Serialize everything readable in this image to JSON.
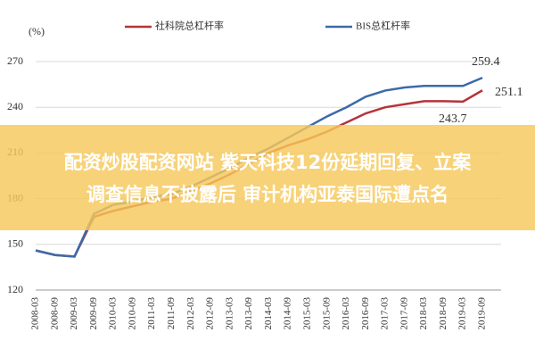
{
  "chart_data": {
    "type": "line",
    "y_unit_label": "(%)",
    "categories": [
      "2008-03",
      "2008-09",
      "2009-03",
      "2009-09",
      "2010-03",
      "2010-09",
      "2011-03",
      "2011-09",
      "2012-03",
      "2012-09",
      "2013-03",
      "2013-09",
      "2014-03",
      "2014-09",
      "2015-03",
      "2015-09",
      "2016-03",
      "2016-09",
      "2017-03",
      "2017-09",
      "2018-03",
      "2018-09",
      "2019-03",
      "2019-09"
    ],
    "series": [
      {
        "name": "社科院总杠杆率",
        "color": "#b5343a",
        "values": [
          146,
          143,
          142,
          168,
          172,
          175,
          178,
          180,
          185,
          190,
          196,
          203,
          210,
          215,
          219,
          224,
          230,
          236,
          240,
          242,
          244,
          244,
          243.7,
          251.1
        ]
      },
      {
        "name": "BIS总杠杆率",
        "color": "#3c6aa8",
        "values": [
          146,
          143,
          142,
          170,
          176,
          178,
          181,
          183,
          188,
          194,
          200,
          207,
          213,
          220,
          227,
          234,
          240,
          247,
          251,
          253,
          254,
          254,
          254,
          259.4
        ]
      }
    ],
    "annotations": [
      "259.4",
      "251.1",
      "243.7"
    ],
    "ylim": [
      120,
      270
    ],
    "yticks": [
      120,
      150,
      180,
      210,
      240,
      270
    ],
    "grid": true
  },
  "overlay_banner": {
    "lines": [
      "配资炒股配资网站 紫天科技12份延期回复、立案",
      "调查信息不披露后 审计机构亚泰国际遭点名"
    ]
  }
}
